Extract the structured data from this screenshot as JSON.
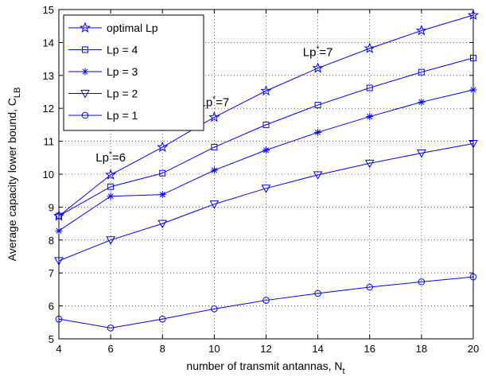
{
  "chart_data": {
    "type": "line",
    "xlabel": "number of transmit antannas, N",
    "xlabel_sub": "t",
    "ylabel": "Average capacity lower bound, C",
    "ylabel_sub": "LB",
    "xlim": [
      4,
      20
    ],
    "ylim": [
      5,
      15
    ],
    "grid": true,
    "legend_position": "top-left",
    "x": [
      4,
      6,
      8,
      10,
      12,
      14,
      16,
      18,
      20
    ],
    "x_ticks": [
      "4",
      "6",
      "8",
      "10",
      "12",
      "14",
      "16",
      "18",
      "20"
    ],
    "y_ticks": [
      "5",
      "6",
      "7",
      "8",
      "9",
      "10",
      "11",
      "12",
      "13",
      "14",
      "15"
    ],
    "line_color": "#0000ff",
    "series": [
      {
        "name": "optimal Lp",
        "marker": "star",
        "values": [
          8.73,
          9.98,
          10.82,
          11.73,
          12.53,
          13.22,
          13.82,
          14.36,
          14.83
        ]
      },
      {
        "name": "Lp = 4",
        "marker": "square",
        "values": [
          8.73,
          9.62,
          10.03,
          10.82,
          11.5,
          12.1,
          12.62,
          13.1,
          13.53
        ]
      },
      {
        "name": "Lp = 3",
        "marker": "asterisk",
        "values": [
          8.28,
          9.33,
          9.38,
          10.12,
          10.73,
          11.27,
          11.75,
          12.19,
          12.56
        ]
      },
      {
        "name": "Lp = 2",
        "marker": "triangle-down",
        "values": [
          7.37,
          8.0,
          8.5,
          9.09,
          9.57,
          9.98,
          10.33,
          10.64,
          10.93
        ]
      },
      {
        "name": "Lp = 1",
        "marker": "circle",
        "values": [
          5.6,
          5.33,
          5.6,
          5.91,
          6.17,
          6.38,
          6.57,
          6.73,
          6.88
        ]
      }
    ],
    "annotations": [
      {
        "base": "Lp",
        "sup": "*",
        "rest": "=6",
        "x": 6,
        "y": 10.15
      },
      {
        "base": "Lp",
        "sup": "*",
        "rest": "=7",
        "x": 10,
        "y": 11.82
      },
      {
        "base": "Lp",
        "sup": "*",
        "rest": "=7",
        "x": 14,
        "y": 13.35
      }
    ]
  }
}
